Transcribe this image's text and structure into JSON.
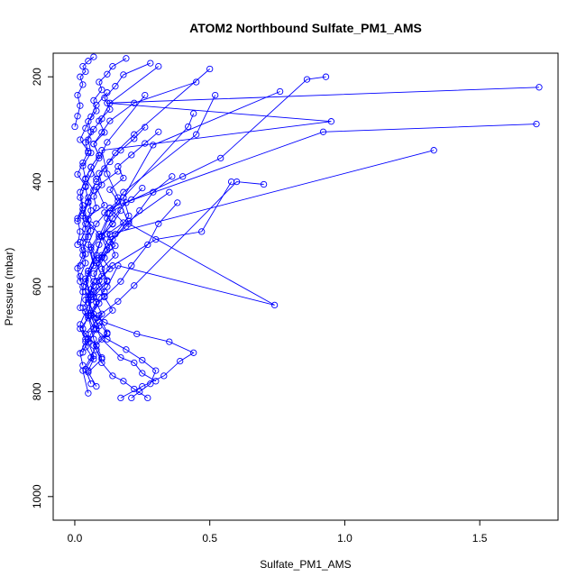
{
  "chart_data": {
    "type": "line",
    "title": "ATOM2 Northbound Sulfate_PM1_AMS",
    "xlabel": "Sulfate_PM1_AMS",
    "ylabel": "Pressure (mbar)",
    "xlim": [
      -0.08,
      1.79
    ],
    "ylim": [
      1045,
      155
    ],
    "y_reversed": true,
    "x_ticks": [
      0.0,
      0.5,
      1.0,
      1.5
    ],
    "x_tick_labels": [
      "0.0",
      "0.5",
      "1.0",
      "1.5"
    ],
    "y_ticks": [
      200,
      400,
      600,
      800,
      1000
    ],
    "y_tick_labels": [
      "200",
      "400",
      "600",
      "800",
      "1000"
    ],
    "marker": "open-circle",
    "line_color": "#0000ff",
    "grid": false,
    "legend": "none",
    "series": [
      {
        "x": [
          0.05,
          0.03,
          0.06,
          0.08,
          0.04,
          0.1,
          0.07,
          0.12,
          0.09,
          0.15,
          0.2,
          0.18,
          0.42,
          0.44
        ],
        "y": [
          803,
          760,
          735,
          712,
          690,
          652,
          620,
          590,
          545,
          500,
          465,
          430,
          295,
          270
        ]
      },
      {
        "x": [
          0.06,
          0.04,
          0.07,
          0.05,
          0.09,
          0.06,
          0.11,
          0.08,
          0.14,
          0.3,
          0.47,
          0.58
        ],
        "y": [
          785,
          757,
          732,
          706,
          675,
          650,
          618,
          590,
          560,
          510,
          495,
          400
        ]
      },
      {
        "x": [
          0.08,
          0.05,
          0.1,
          0.07,
          0.12,
          0.09,
          0.16,
          0.22,
          0.6,
          0.7
        ],
        "y": [
          790,
          763,
          738,
          712,
          688,
          655,
          628,
          598,
          400,
          405
        ]
      },
      {
        "x": [
          0.03,
          0.02,
          0.04,
          0.03,
          0.05,
          0.04,
          0.07,
          0.05,
          0.08,
          0.1,
          0.14,
          0.19,
          0.4,
          0.54,
          0.86,
          0.93
        ],
        "y": [
          750,
          727,
          705,
          680,
          655,
          625,
          598,
          570,
          540,
          505,
          470,
          440,
          390,
          355,
          205,
          200
        ]
      },
      {
        "x": [
          0.3,
          0.25,
          0.22,
          0.17,
          0.1,
          0.08,
          0.06,
          0.09,
          0.12,
          0.16,
          0.74,
          0.2,
          0.16,
          0.12,
          0.1,
          0.95,
          0.12,
          1.72
        ],
        "y": [
          780,
          765,
          745,
          735,
          700,
          680,
          655,
          620,
          600,
          560,
          635,
          480,
          430,
          385,
          340,
          285,
          250,
          220
        ]
      },
      {
        "x": [
          0.27,
          0.22,
          0.18,
          0.14,
          0.1,
          0.08,
          0.07,
          0.05,
          0.06,
          0.04,
          0.07,
          0.05,
          0.08,
          0.13,
          0.92,
          1.71
        ],
        "y": [
          812,
          795,
          780,
          770,
          745,
          720,
          700,
          655,
          620,
          590,
          560,
          520,
          480,
          450,
          305,
          290
        ]
      },
      {
        "x": [
          0.21,
          0.24,
          0.28,
          0.3,
          0.25,
          0.19,
          0.12,
          0.08,
          0.06,
          0.05,
          0.07,
          0.1,
          0.13,
          1.33
        ],
        "y": [
          812,
          800,
          785,
          760,
          740,
          720,
          700,
          682,
          655,
          620,
          590,
          540,
          500,
          340
        ]
      },
      {
        "x": [
          0.17,
          0.25,
          0.33,
          0.39,
          0.44,
          0.35,
          0.23,
          0.11,
          0.07,
          0.04,
          0.05,
          0.09,
          0.13,
          0.18,
          0.29,
          0.76
        ],
        "y": [
          812,
          790,
          770,
          742,
          726,
          705,
          690,
          668,
          652,
          610,
          570,
          520,
          460,
          430,
          330,
          228
        ]
      },
      {
        "x": [
          0.01,
          0.02,
          0.01,
          0.03,
          0.02,
          0.04,
          0.03,
          0.06,
          0.05,
          0.07,
          0.1,
          0.13,
          0.31
        ],
        "y": [
          520,
          495,
          470,
          445,
          420,
          395,
          370,
          345,
          320,
          300,
          280,
          250,
          180
        ]
      },
      {
        "x": [
          0.02,
          0.03,
          0.02,
          0.04,
          0.03,
          0.05,
          0.04,
          0.06,
          0.05,
          0.08,
          0.11,
          0.15,
          0.22,
          0.5
        ],
        "y": [
          640,
          610,
          580,
          555,
          530,
          505,
          480,
          455,
          430,
          400,
          375,
          345,
          310,
          185
        ]
      },
      {
        "x": [
          0.04,
          0.02,
          0.05,
          0.03,
          0.06,
          0.04,
          0.07,
          0.06,
          0.09,
          0.12,
          0.18,
          0.45,
          0.52
        ],
        "y": [
          700,
          680,
          660,
          640,
          615,
          585,
          560,
          530,
          505,
          470,
          420,
          310,
          235
        ]
      },
      {
        "x": [
          0.02,
          0.01,
          0.03,
          0.02,
          0.04,
          0.03,
          0.05,
          0.04,
          0.06,
          0.09,
          0.12,
          0.26
        ],
        "y": [
          590,
          565,
          540,
          515,
          490,
          465,
          440,
          410,
          385,
          355,
          325,
          235
        ]
      },
      {
        "x": [
          0.05,
          0.07,
          0.04,
          0.06,
          0.08,
          0.05,
          0.09,
          0.07,
          0.11,
          0.14,
          0.2,
          0.35
        ],
        "y": [
          760,
          738,
          715,
          690,
          660,
          630,
          600,
          575,
          545,
          510,
          475,
          420
        ]
      },
      {
        "x": [
          0.1,
          0.08,
          0.12,
          0.09,
          0.14,
          0.11,
          0.17,
          0.21,
          0.27,
          0.31,
          0.38
        ],
        "y": [
          735,
          712,
          690,
          668,
          645,
          620,
          590,
          560,
          520,
          480,
          440
        ]
      },
      {
        "x": [
          0.03,
          0.05,
          0.02,
          0.04,
          0.06,
          0.03,
          0.05,
          0.08,
          0.06,
          0.09,
          0.04,
          0.11,
          0.08,
          0.16
        ],
        "y": [
          725,
          700,
          672,
          648,
          625,
          600,
          575,
          550,
          525,
          500,
          470,
          445,
          410,
          380
        ]
      },
      {
        "x": [
          0.06,
          0.09,
          0.07,
          0.12,
          0.1,
          0.15,
          0.13,
          0.19,
          0.24,
          0.29,
          0.36
        ],
        "y": [
          655,
          632,
          610,
          588,
          566,
          540,
          515,
          485,
          455,
          420,
          390
        ]
      },
      {
        "x": [
          0.01,
          0.03,
          0.02,
          0.04,
          0.01,
          0.03,
          0.05,
          0.02,
          0.04,
          0.06,
          0.08,
          0.12
        ],
        "y": [
          475,
          452,
          430,
          408,
          386,
          364,
          342,
          320,
          298,
          276,
          254,
          230
        ]
      },
      {
        "x": [
          0.02,
          0.04,
          0.03,
          0.06,
          0.05,
          0.08,
          0.07,
          0.1,
          0.09,
          0.13,
          0.17,
          0.22,
          0.26
        ],
        "y": [
          560,
          538,
          516,
          494,
          472,
          450,
          428,
          406,
          384,
          362,
          340,
          318,
          296
        ]
      },
      {
        "x": [
          0.11,
          0.09,
          0.13,
          0.1,
          0.15,
          0.12,
          0.18,
          0.14,
          0.21,
          0.25
        ],
        "y": [
          610,
          588,
          566,
          544,
          522,
          500,
          478,
          456,
          434,
          412
        ]
      },
      {
        "x": [
          0.0,
          0.01,
          0.02,
          0.01,
          0.03,
          0.02,
          0.04,
          0.03,
          0.05,
          0.07
        ],
        "y": [
          295,
          275,
          255,
          235,
          215,
          200,
          190,
          180,
          170,
          162
        ]
      },
      {
        "x": [
          0.05,
          0.04,
          0.06,
          0.05,
          0.08,
          0.07,
          0.1,
          0.09,
          0.12,
          0.14,
          0.19
        ],
        "y": [
          345,
          325,
          305,
          285,
          265,
          245,
          225,
          210,
          195,
          180,
          165
        ]
      },
      {
        "x": [
          0.08,
          0.06,
          0.09,
          0.07,
          0.11,
          0.09,
          0.13,
          0.11,
          0.15,
          0.18,
          0.28
        ],
        "y": [
          395,
          372,
          350,
          328,
          306,
          284,
          262,
          240,
          218,
          196,
          174
        ]
      },
      {
        "x": [
          0.04,
          0.06,
          0.03,
          0.05,
          0.07,
          0.04,
          0.06,
          0.09,
          0.07,
          0.1,
          0.13,
          0.22,
          0.45
        ],
        "y": [
          505,
          482,
          460,
          438,
          416,
          394,
          372,
          350,
          328,
          306,
          284,
          250,
          210
        ]
      },
      {
        "x": [
          0.13,
          0.1,
          0.14,
          0.11,
          0.16,
          0.13,
          0.18,
          0.16,
          0.21,
          0.26,
          0.31
        ],
        "y": [
          525,
          503,
          481,
          459,
          437,
          415,
          393,
          371,
          349,
          327,
          305
        ]
      },
      {
        "x": [
          0.07,
          0.05,
          0.08,
          0.06,
          0.1,
          0.08,
          0.12,
          0.1,
          0.14,
          0.17
        ],
        "y": [
          680,
          655,
          630,
          605,
          580,
          555,
          530,
          505,
          480,
          455
        ]
      }
    ]
  }
}
